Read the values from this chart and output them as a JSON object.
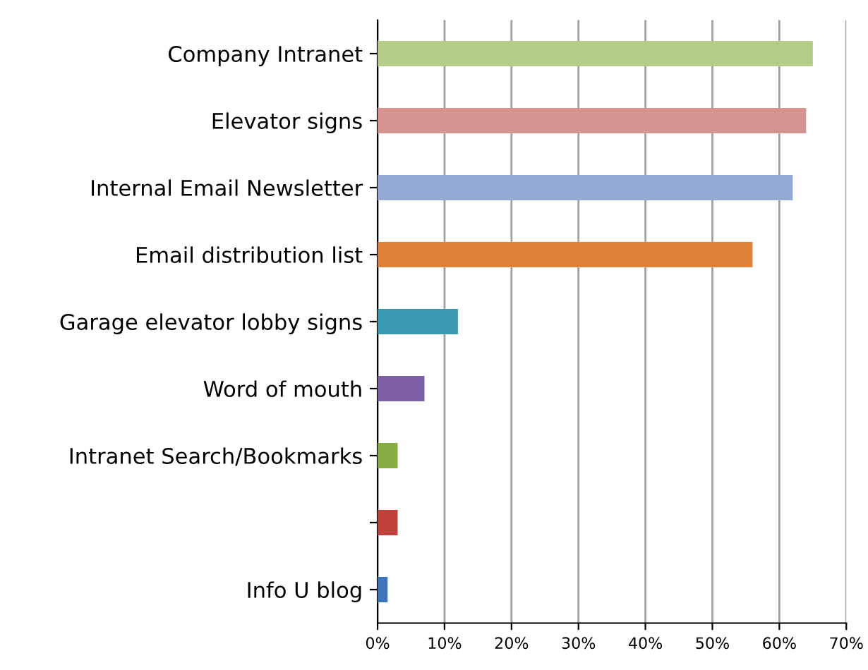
{
  "chart_data": {
    "type": "bar",
    "orientation": "horizontal",
    "categories": [
      "Company Intranet",
      "Elevator signs",
      "Internal Email Newsletter",
      "Email distribution list",
      "Garage elevator lobby signs",
      "Word of mouth",
      "Intranet Search/Bookmarks",
      null,
      "Info U blog"
    ],
    "values": [
      65,
      64,
      62,
      56,
      12,
      7,
      3,
      3,
      1.5
    ],
    "colors": [
      "#b3cc8a",
      "#d69490",
      "#94a9d6",
      "#e0823a",
      "#3a9ab0",
      "#7b5ea6",
      "#8aac45",
      "#c0403c",
      "#3f74b8"
    ],
    "xlim": [
      0,
      70
    ],
    "xticks": [
      {
        "value": 0,
        "label": "0%"
      },
      {
        "value": 10,
        "label": "10%"
      },
      {
        "value": 20,
        "label": "20%"
      },
      {
        "value": 30,
        "label": "30%"
      },
      {
        "value": 40,
        "label": "40%"
      },
      {
        "value": 50,
        "label": "50%"
      },
      {
        "value": 60,
        "label": "60%"
      },
      {
        "value": 70,
        "label": "70%"
      }
    ],
    "grid": "x",
    "legend": false
  }
}
